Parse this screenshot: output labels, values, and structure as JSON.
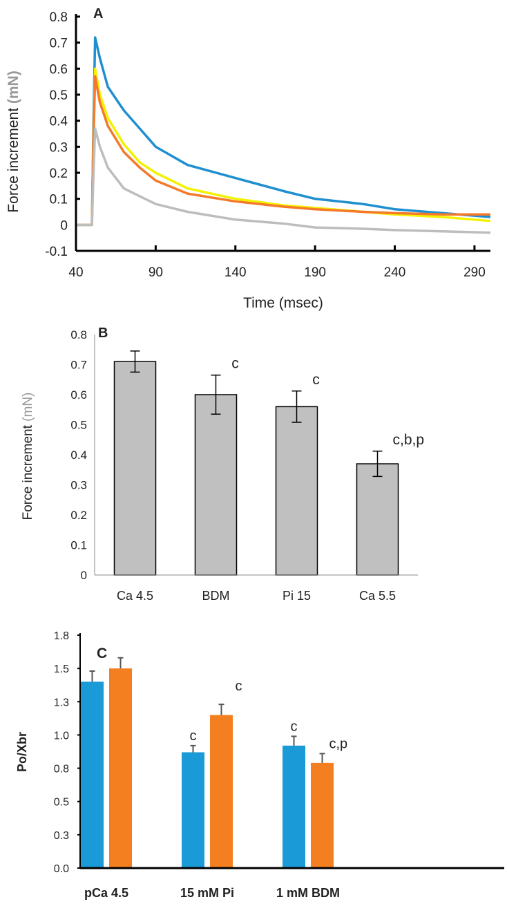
{
  "chart_data": [
    {
      "type": "line",
      "panel": "A",
      "title": "",
      "xlabel": "Time (msec)",
      "ylabel": "Force increment",
      "ylabel_unit": "(mN)",
      "xlim": [
        40,
        300
      ],
      "ylim": [
        -0.1,
        0.8
      ],
      "xticks": [
        "40",
        "90",
        "140",
        "190",
        "240",
        "290"
      ],
      "yticks": [
        "-0.1",
        "0",
        "0.1",
        "0.2",
        "0.3",
        "0.4",
        "0.5",
        "0.6",
        "0.7",
        "0.8"
      ],
      "x": [
        40,
        50,
        51,
        52,
        55,
        60,
        70,
        80,
        90,
        110,
        140,
        170,
        190,
        220,
        240,
        270,
        300
      ],
      "series": [
        {
          "name": "blue",
          "color": "#1f8fd0",
          "values": [
            0,
            0,
            0.4,
            0.72,
            0.64,
            0.53,
            0.44,
            0.37,
            0.3,
            0.23,
            0.18,
            0.13,
            0.1,
            0.08,
            0.06,
            0.045,
            0.03
          ]
        },
        {
          "name": "yellow",
          "color": "#f2f200",
          "values": [
            0,
            0,
            0.35,
            0.6,
            0.5,
            0.41,
            0.31,
            0.24,
            0.2,
            0.14,
            0.1,
            0.075,
            0.065,
            0.05,
            0.04,
            0.03,
            0.015
          ]
        },
        {
          "name": "orange",
          "color": "#f47a2a",
          "values": [
            0,
            0,
            0.33,
            0.57,
            0.47,
            0.38,
            0.28,
            0.22,
            0.17,
            0.12,
            0.09,
            0.07,
            0.06,
            0.05,
            0.045,
            0.04,
            0.04
          ]
        },
        {
          "name": "gray",
          "color": "#bdbdbd",
          "values": [
            0,
            0,
            0.2,
            0.37,
            0.3,
            0.22,
            0.14,
            0.11,
            0.08,
            0.05,
            0.02,
            0.005,
            -0.01,
            -0.015,
            -0.02,
            -0.025,
            -0.03
          ]
        }
      ]
    },
    {
      "type": "bar",
      "panel": "B",
      "ylabel": "Force increment",
      "ylabel_unit": "(mN)",
      "ylim": [
        0,
        0.8
      ],
      "yticks": [
        "0",
        "0.1",
        "0.2",
        "0.3",
        "0.4",
        "0.5",
        "0.6",
        "0.7",
        "0.8"
      ],
      "categories": [
        "Ca 4.5",
        "BDM",
        "Pi 15",
        "Ca 5.5"
      ],
      "values": [
        0.71,
        0.6,
        0.56,
        0.37
      ],
      "errors": [
        0.035,
        0.065,
        0.052,
        0.042
      ],
      "annotations": [
        "",
        "c",
        "c",
        "c,b,p"
      ],
      "color": "#c0c0c0"
    },
    {
      "type": "bar",
      "panel": "C",
      "ylabel": "Po/Xbr",
      "ylim": [
        0,
        1.75
      ],
      "yticks": [
        "0.0",
        "0.3",
        "0.5",
        "0.8",
        "1.0",
        "1.3",
        "1.5",
        "1.8"
      ],
      "categories": [
        "pCa 4.5",
        "15 mM Pi",
        "1 mM BDM"
      ],
      "series": [
        {
          "name": "blue",
          "color": "#1a9ad6",
          "values": [
            1.4,
            0.87,
            0.92
          ],
          "errors": [
            0.08,
            0.05,
            0.07
          ],
          "annotations": [
            "",
            "c",
            "c"
          ]
        },
        {
          "name": "orange",
          "color": "#f47f20",
          "values": [
            1.5,
            1.15,
            0.79
          ],
          "errors": [
            0.08,
            0.08,
            0.07
          ],
          "annotations": [
            "",
            "c",
            "c,p"
          ]
        }
      ]
    }
  ]
}
